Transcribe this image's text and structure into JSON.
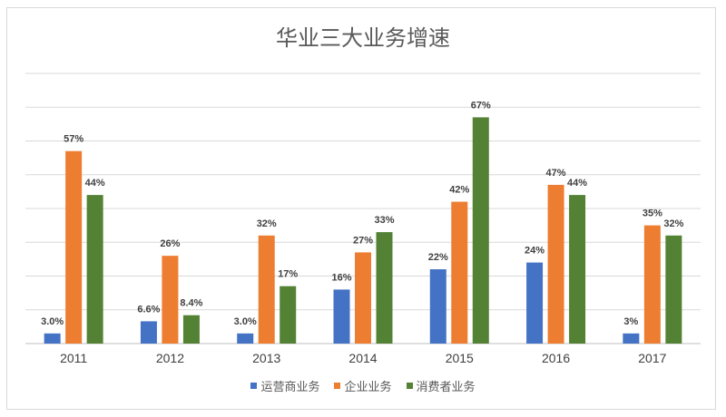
{
  "chart_data": {
    "type": "bar",
    "title": "华业三大业务增速",
    "categories": [
      "2011",
      "2012",
      "2013",
      "2014",
      "2015",
      "2016",
      "2017"
    ],
    "series": [
      {
        "name": "运营商业务",
        "color": "#4472c4",
        "values": [
          3.0,
          6.6,
          3.0,
          16,
          22,
          24,
          3
        ],
        "labels": [
          "3.0%",
          "6.6%",
          "3.0%",
          "16%",
          "22%",
          "24%",
          "3%"
        ]
      },
      {
        "name": "企业业务",
        "color": "#ed7d31",
        "values": [
          57,
          26,
          32,
          27,
          42,
          47,
          35
        ],
        "labels": [
          "57%",
          "26%",
          "32%",
          "27%",
          "42%",
          "47%",
          "35%"
        ]
      },
      {
        "name": "消费者业务",
        "color": "#548235",
        "values": [
          44,
          8.4,
          17,
          33,
          67,
          44,
          32
        ],
        "labels": [
          "44%",
          "8.4%",
          "17%",
          "33%",
          "67%",
          "44%",
          "32%"
        ]
      }
    ],
    "ylim": [
      0,
      80
    ],
    "ytick_step": 10,
    "y_axis_labels_shown": false,
    "grid": true,
    "legend": "bottom",
    "xlabel": "",
    "ylabel": ""
  }
}
